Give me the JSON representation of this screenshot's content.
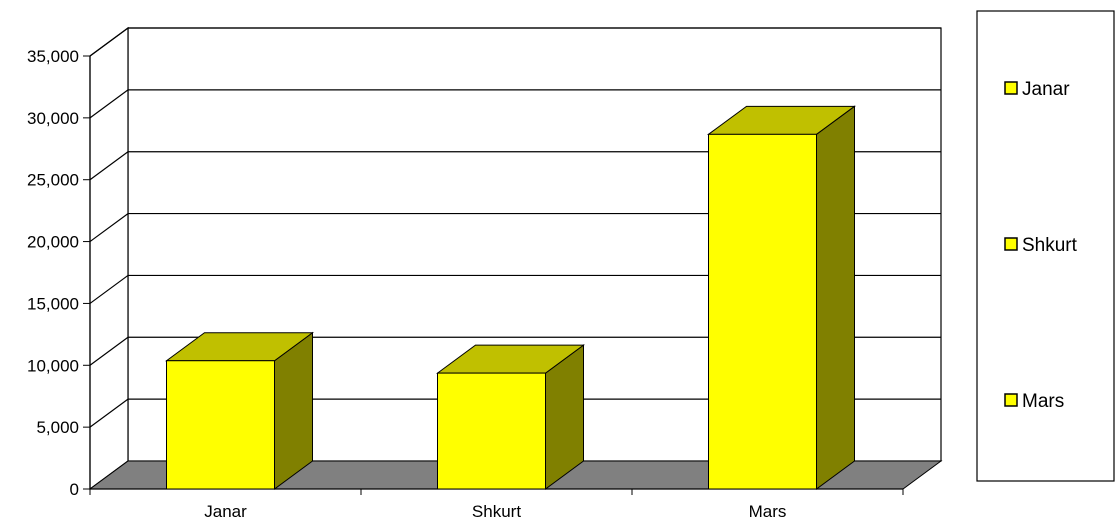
{
  "chart_data": {
    "type": "bar",
    "style": "3d-column",
    "categories": [
      "Janar",
      "Shkurt",
      "Mars"
    ],
    "series": [
      {
        "values": [
          11500,
          10500,
          29800
        ]
      }
    ],
    "title": "",
    "xlabel": "",
    "ylabel": "",
    "ylim": [
      0,
      35000
    ],
    "y_ticks": [
      "0",
      "5,000",
      "10,000",
      "15,000",
      "20,000",
      "25,000",
      "30,000",
      "35,000"
    ],
    "grid": true,
    "legend": {
      "placement": "right",
      "entries": [
        "Janar",
        "Shkurt",
        "Mars"
      ]
    },
    "colors": {
      "bar_front": "#ffff00",
      "bar_top": "#c0c000",
      "bar_side": "#808000",
      "floor": "#808080",
      "gridline": "#000000"
    }
  }
}
